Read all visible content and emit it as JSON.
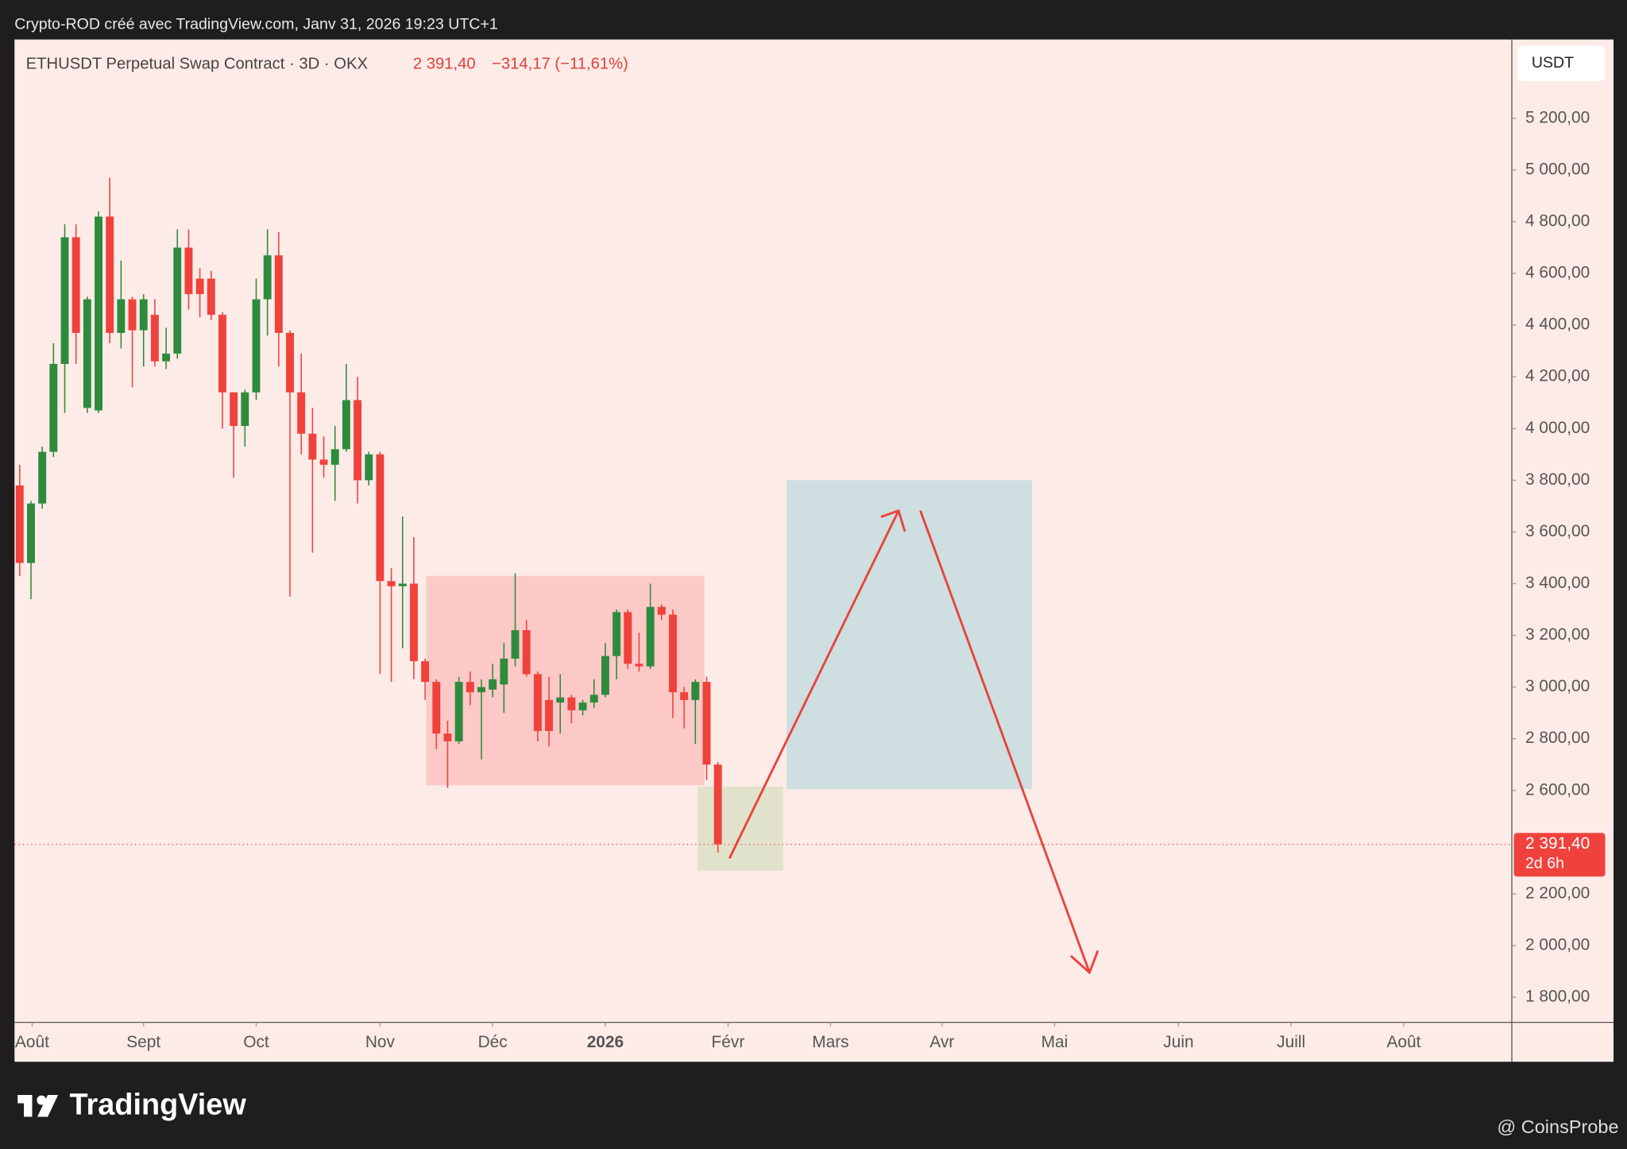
{
  "chart_data": {
    "type": "candlestick",
    "credit": "Crypto-ROD créé avec TradingView.com, Janv 31, 2026 19:23 UTC+1",
    "title": "ETHUSDT Perpetual Swap Contract · 3D · OKX",
    "change_label": "−314,17 (−11,61%)",
    "currency": "USDT",
    "last_price": {
      "value": 2391.4,
      "label": "2 391,40",
      "countdown": "2d 6h"
    },
    "brand": "TradingView",
    "watermark": "@ CoinsProbe",
    "up_color": "#2e8b3e",
    "down_color": "#f0423c",
    "open": [
      3780,
      3480,
      3710,
      3910,
      4250,
      4740,
      4080,
      4070,
      4820,
      4370,
      4500,
      4380,
      4440,
      4260,
      4290,
      4700,
      4580,
      4580,
      4440,
      4140,
      4010,
      4140,
      4500,
      4670,
      4370,
      4140,
      3980,
      3880,
      3860,
      3920,
      4110,
      3800,
      3900,
      3410,
      3390,
      3400,
      3100,
      3020,
      2820,
      2790,
      3020,
      2980,
      2990,
      3010,
      3110,
      3220,
      3050,
      2950,
      2940,
      2960,
      2910,
      2940,
      2970,
      3120,
      3290,
      3090,
      3080,
      3310,
      3280,
      2980,
      2950,
      3020,
      2700
    ],
    "high": [
      3860,
      3720,
      3930,
      4330,
      4790,
      4790,
      4510,
      4840,
      4970,
      4650,
      4510,
      4520,
      4500,
      4390,
      4770,
      4770,
      4620,
      4610,
      4450,
      4140,
      4150,
      4580,
      4770,
      4760,
      4380,
      4290,
      4080,
      3970,
      4010,
      4250,
      4200,
      3910,
      3910,
      3460,
      3660,
      3580,
      3110,
      3030,
      2870,
      3040,
      3060,
      3030,
      3090,
      3170,
      3440,
      3260,
      3060,
      3040,
      3050,
      2970,
      2950,
      3030,
      3170,
      3300,
      3300,
      3210,
      3400,
      3320,
      3300,
      3000,
      3030,
      3040,
      2710
    ],
    "low": [
      3430,
      3340,
      3690,
      3890,
      4060,
      4250,
      4060,
      4060,
      4330,
      4310,
      4160,
      4240,
      4240,
      4230,
      4270,
      4460,
      4430,
      4420,
      4000,
      3810,
      3930,
      4110,
      4360,
      4240,
      3350,
      3900,
      3520,
      3810,
      3720,
      3910,
      3710,
      3780,
      3050,
      3020,
      3150,
      3030,
      2950,
      2760,
      2610,
      2780,
      2930,
      2720,
      2960,
      2900,
      3080,
      3040,
      2790,
      2770,
      2820,
      2860,
      2890,
      2920,
      2960,
      3030,
      3070,
      3060,
      3070,
      3260,
      2880,
      2840,
      2780,
      2640,
      2360
    ],
    "close": [
      3480,
      3710,
      3910,
      4250,
      4740,
      4370,
      4500,
      4820,
      4370,
      4500,
      4380,
      4500,
      4260,
      4290,
      4700,
      4520,
      4520,
      4440,
      4140,
      4010,
      4140,
      4500,
      4670,
      4370,
      4140,
      3980,
      3880,
      3860,
      3920,
      4110,
      3800,
      3900,
      3410,
      3390,
      3400,
      3100,
      3020,
      2820,
      2790,
      3020,
      2980,
      3000,
      3030,
      3110,
      3220,
      3050,
      2830,
      2830,
      2960,
      2910,
      2940,
      2970,
      3120,
      3290,
      3090,
      3080,
      3310,
      3280,
      2980,
      2950,
      3020,
      2700,
      2391.4
    ],
    "zones": [
      {
        "x": [
          36.1,
          60.8
        ],
        "y": [
          2620,
          3430
        ],
        "color": "rgba(250,160,160,0.45)"
      },
      {
        "x": [
          60.2,
          67.8
        ],
        "y": [
          2290,
          2615
        ],
        "color": "rgba(190,215,170,0.45)"
      },
      {
        "x": [
          68.1,
          89.9
        ],
        "y": [
          2605,
          3800
        ],
        "color": "rgba(160,210,220,0.5)"
      }
    ],
    "xlim": [
      -0.46,
      132.5
    ],
    "xticks": [
      {
        "value": 1.1,
        "label": "Août"
      },
      {
        "value": 11,
        "label": "Sept"
      },
      {
        "value": 21,
        "label": "Oct"
      },
      {
        "value": 32,
        "label": "Nov"
      },
      {
        "value": 42,
        "label": "Déc"
      },
      {
        "value": 52,
        "label": "2026"
      },
      {
        "value": 62.9,
        "label": "Févr"
      },
      {
        "value": 72,
        "label": "Mars"
      },
      {
        "value": 81.9,
        "label": "Avr"
      },
      {
        "value": 91.9,
        "label": "Mai"
      },
      {
        "value": 102.9,
        "label": "Juin"
      },
      {
        "value": 112.9,
        "label": "Juill"
      },
      {
        "value": 122.9,
        "label": "Août"
      }
    ],
    "ylim": [
      1703,
      5505
    ],
    "yticks": [
      {
        "value": 1800,
        "label": "1 800,00"
      },
      {
        "value": 2000,
        "label": "2 000,00"
      },
      {
        "value": 2200,
        "label": "2 200,00"
      },
      {
        "value": 2600,
        "label": "2 600,00"
      },
      {
        "value": 2800,
        "label": "2 800,00"
      },
      {
        "value": 3000,
        "label": "3 000,00"
      },
      {
        "value": 3200,
        "label": "3 200,00"
      },
      {
        "value": 3400,
        "label": "3 400,00"
      },
      {
        "value": 3600,
        "label": "3 600,00"
      },
      {
        "value": 3800,
        "label": "3 800,00"
      },
      {
        "value": 4000,
        "label": "4 000,00"
      },
      {
        "value": 4200,
        "label": "4 200,00"
      },
      {
        "value": 4400,
        "label": "4 400,00"
      },
      {
        "value": 4600,
        "label": "4 600,00"
      },
      {
        "value": 4800,
        "label": "4 800,00"
      },
      {
        "value": 5000,
        "label": "5 000,00"
      },
      {
        "value": 5200,
        "label": "5 200,00"
      }
    ]
  }
}
